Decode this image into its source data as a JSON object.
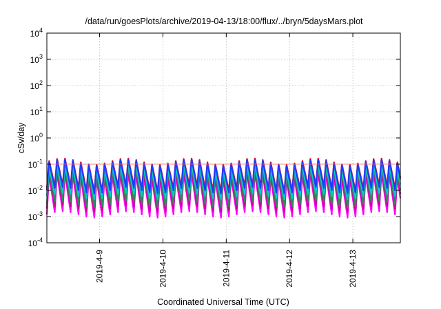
{
  "chart_data": {
    "type": "line",
    "title": "/data/run/goesPlots/archive/2019-04-13/18:00/flux/../bryn/5daysMars.plot",
    "xlabel": "Coordinated Universal Time (UTC)",
    "ylabel": "cSv/day",
    "y_scale": "log",
    "ylim_exp": [
      -4,
      4
    ],
    "y_ticks": [
      {
        "base": "10",
        "exp": "4"
      },
      {
        "base": "10",
        "exp": "3"
      },
      {
        "base": "10",
        "exp": "2"
      },
      {
        "base": "10",
        "exp": "1"
      },
      {
        "base": "10",
        "exp": "0"
      },
      {
        "base": "10",
        "exp": "-1"
      },
      {
        "base": "10",
        "exp": "-2"
      },
      {
        "base": "10",
        "exp": "-3"
      },
      {
        "base": "10",
        "exp": "-4"
      }
    ],
    "x_range": [
      "2019-04-08 04:00",
      "2019-04-13 18:00"
    ],
    "x_ticks": [
      "2019-4-9",
      "2019-4-10",
      "2019-4-11",
      "2019-4-12",
      "2019-4-13"
    ],
    "grid": true,
    "legend": "none",
    "reference_line": {
      "value": 0.1,
      "color": "#ff6666"
    },
    "cycles_per_day": 8,
    "series": [
      {
        "color": "#ff00ff",
        "peak": 0.035,
        "trough": 0.0012
      },
      {
        "color": "#cc0099",
        "peak": 0.045,
        "trough": 0.002
      },
      {
        "color": "#2e8b57",
        "peak": 0.06,
        "trough": 0.003
      },
      {
        "color": "#00cccc",
        "peak": 0.075,
        "trough": 0.006
      },
      {
        "color": "#ff0000",
        "peak": 0.13,
        "trough": 0.012
      },
      {
        "color": "#1e3cff",
        "peak": 0.12,
        "trough": 0.01
      }
    ]
  }
}
